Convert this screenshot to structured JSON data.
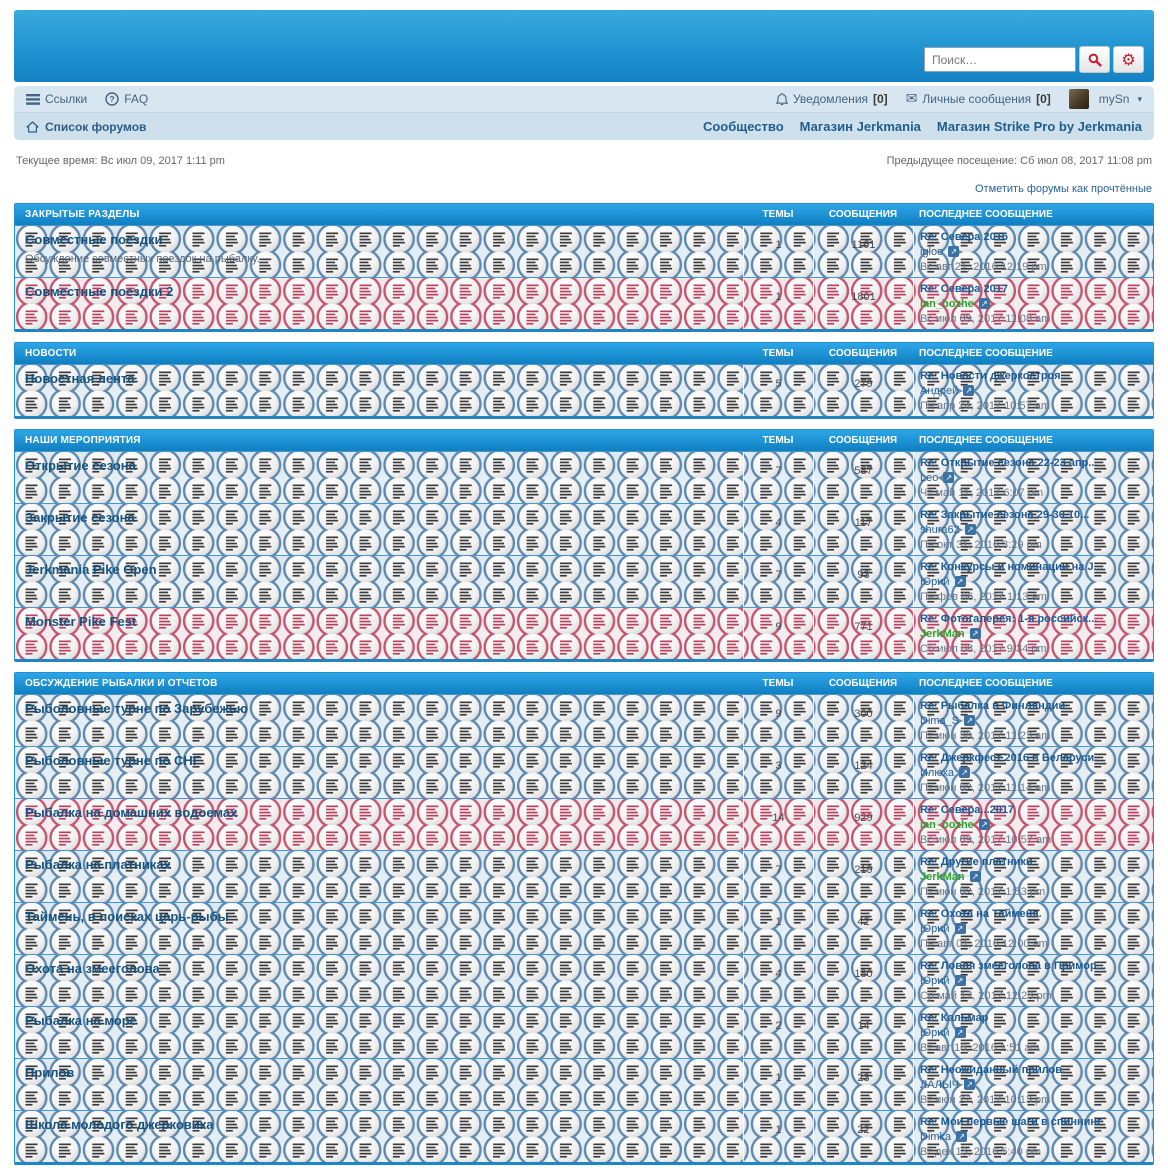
{
  "colors": {
    "accent_blue": "#1a85c5",
    "unread_red": "#c2566f",
    "link_blue": "#1c5a8e",
    "green_user": "#2fa32f",
    "button_icon_red": "#c21f2e"
  },
  "icons": {
    "gear": "⚙",
    "envelope": "✉",
    "dropdown": "▾",
    "jump_arrow": "↗",
    "question": "?"
  },
  "search": {
    "placeholder": "Поиск…"
  },
  "nav": {
    "links_label": "Ссылки",
    "faq_label": "FAQ",
    "notifications_label": "Уведомления",
    "notifications_count": "[0]",
    "pm_label": "Личные сообщения",
    "pm_count": "[0]",
    "username": "mySn"
  },
  "breadcrumb": {
    "home": "Список форумов",
    "right_links": [
      "Сообщество",
      "Магазин Jerkmania",
      "Магазин Strike Pro by Jerkmania"
    ]
  },
  "meta": {
    "current_time": "Текущее время: Вс июл 09, 2017 1:11 pm",
    "last_visit": "Предыдущее посещение: Сб июл 08, 2017 11:08 pm",
    "mark_read": "Отметить форумы как прочтённые"
  },
  "columns": {
    "topics": "ТЕМЫ",
    "posts": "СООБЩЕНИЯ",
    "last_post": "ПОСЛЕДНЕЕ СООБЩЕНИЕ"
  },
  "sections": [
    {
      "title": "ЗАКРЫТЫЕ РАЗДЕЛЫ",
      "forums": [
        {
          "name": "Совместные поездки",
          "desc": "Обсуждение совместных поездок на рыбалку.",
          "unread": false,
          "topics": "1",
          "posts": "1161",
          "last": {
            "title": "Re: Севера 2016",
            "author": "igloo",
            "author_style": "blue",
            "date": "Вс авг 21, 2016 12:19 pm"
          }
        },
        {
          "name": "Совместные поездки 2",
          "unread": true,
          "topics": "1",
          "posts": "1801",
          "last": {
            "title": "Re: Севера 2017",
            "author": "ian_bozhe",
            "author_style": "green",
            "date": "Вс июл 09, 2017 11:08 am"
          }
        }
      ]
    },
    {
      "title": "НОВОСТИ",
      "forums": [
        {
          "name": "Новостная лента",
          "unread": false,
          "topics": "5",
          "posts": "279",
          "last": {
            "title": "Re: Новости джеркостроя...",
            "author": "Андрей",
            "author_style": "blue",
            "date": "Пн апр 24, 2017 10:57 am"
          }
        }
      ]
    },
    {
      "title": "НАШИ МЕРОПРИЯТИЯ",
      "forums": [
        {
          "name": "Открытие сезона",
          "unread": false,
          "topics": "7",
          "posts": "587",
          "last": {
            "title": "Re: Открытие сезона 22-23 апр...",
            "author": "Leo",
            "author_style": "blue",
            "date": "Чт май 11, 2017 6:07 pm"
          }
        },
        {
          "name": "Закрытие сезона",
          "unread": false,
          "topics": "4",
          "posts": "117",
          "last": {
            "title": "Re: Закрытие сезона 29-30.10...",
            "author": "shura62",
            "author_style": "blue",
            "date": "Пн окт 31, 2016 3:29 pm"
          }
        },
        {
          "name": "Jerkmania Pike Open",
          "unread": false,
          "topics": "7",
          "posts": "93",
          "last": {
            "title": "Re: Конкурсы и номинации на J...",
            "author": "Юрий",
            "author_style": "blue",
            "date": "Пн фев 06, 2017 1:13 am"
          }
        },
        {
          "name": "Monster Pike Fest",
          "unread": true,
          "topics": "9",
          "posts": "771",
          "last": {
            "title": "Re: Фотогалерея: 1-я российск...",
            "author": "JerkMan",
            "author_style": "green",
            "date": "Сб июл 08, 2017 9:34 pm"
          }
        }
      ]
    },
    {
      "title": "ОБСУЖДЕНИЕ РЫБАЛКИ И ОТЧЕТОВ",
      "forums": [
        {
          "name": "Рыболовные турне по Зарубежью",
          "unread": false,
          "topics": "9",
          "posts": "300",
          "last": {
            "title": "Re: Рыбалка в Финляндии.",
            "author": "Dima_S",
            "author_style": "blue",
            "date": "Пт июн 30, 2017 11:23 am"
          }
        },
        {
          "name": "Рыболовные турне по СНГ",
          "unread": false,
          "topics": "3",
          "posts": "124",
          "last": {
            "title": "Re: Джеркфест 2016 в Беларуси.",
            "author": "Илюха",
            "author_style": "blue",
            "date": "Пт июн 02, 2017 11:14 am"
          }
        },
        {
          "name": "Рыбалка на домашних водоемах",
          "unread": true,
          "topics": "14",
          "posts": "929",
          "last": {
            "title": "Re: Севера...2017",
            "author": "ian_bozhe",
            "author_style": "green",
            "date": "Вс июл 09, 2017 10:57 am"
          }
        },
        {
          "name": "Рыбалка на платниках",
          "unread": false,
          "topics": "7",
          "posts": "219",
          "last": {
            "title": "Re: Другие платники",
            "author": "JerkMan",
            "author_style": "green",
            "date": "Пт июн 02, 2017 1:53 pm"
          }
        },
        {
          "name": "Таймень, в поисках царь-рыбы",
          "unread": false,
          "topics": "1",
          "posts": "42",
          "last": {
            "title": "Re: Охота на Тайменя.",
            "author": "Юрий",
            "author_style": "blue",
            "date": "Пн авг 01, 2016 12:00 am"
          }
        },
        {
          "name": "Охота на змееголова",
          "unread": false,
          "topics": "4",
          "posts": "180",
          "last": {
            "title": "Re: Ловля змееголова в Примор...",
            "author": "Юрий",
            "author_style": "blue",
            "date": "Ср май 17, 2017 12:23 pm"
          }
        },
        {
          "name": "Рыбалка на море",
          "unread": false,
          "topics": "2",
          "posts": "14",
          "last": {
            "title": "Re: Кальмар",
            "author": "Юрий",
            "author_style": "blue",
            "date": "Вт авг 16, 2016 1:51 am"
          }
        },
        {
          "name": "Прилов",
          "unread": false,
          "topics": "1",
          "posts": "23",
          "last": {
            "title": "Re: Неожиданный прилов.",
            "author": "ЛАЛЫЧ",
            "author_style": "blue",
            "date": "Вт июн 27, 2017 10:13 pm"
          }
        },
        {
          "name": "Школа молодого джерковика",
          "unread": false,
          "topics": "1",
          "posts": "22",
          "last": {
            "title": "Re: Мои первые шаги в спиннинг",
            "author": "Dimka",
            "author_style": "blue",
            "date": "Вт дек 13, 2016 5:40 pm"
          }
        }
      ]
    }
  ]
}
